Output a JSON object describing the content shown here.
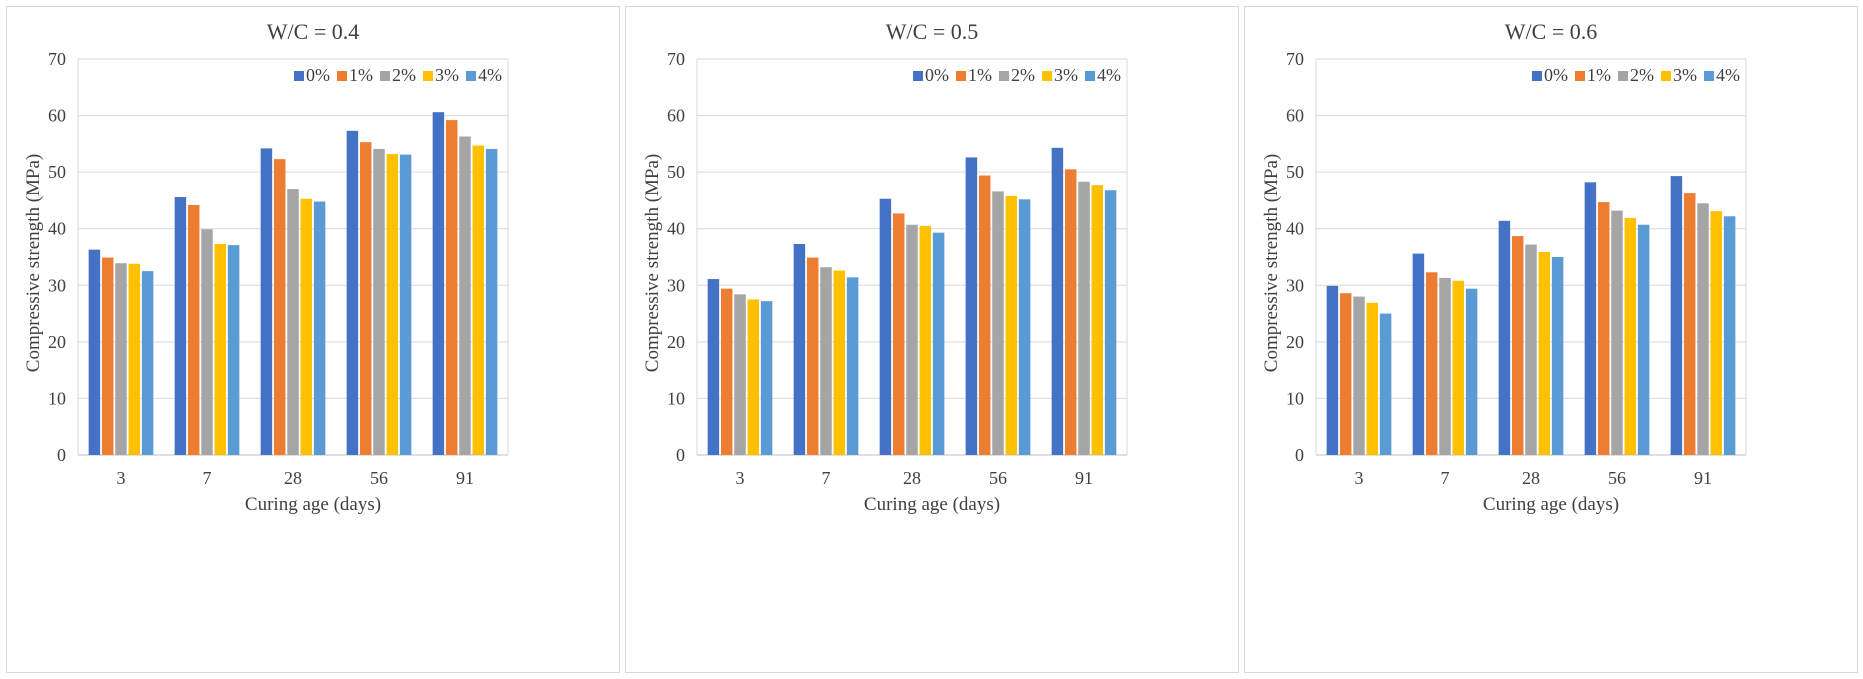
{
  "chart_data": [
    {
      "type": "bar",
      "title": "W/C = 0.4",
      "xlabel": "Curing age (days)",
      "ylabel": "Compressive strength (MPa)",
      "ylim": [
        0,
        70
      ],
      "yticks": [
        "0",
        "10",
        "20",
        "30",
        "40",
        "50",
        "60",
        "70"
      ],
      "categories": [
        "3",
        "7",
        "28",
        "56",
        "91"
      ],
      "legend_position": "top-right",
      "grid": true,
      "series": [
        {
          "name": "0%",
          "color": "#4472C4",
          "values": [
            36.3,
            45.6,
            54.2,
            57.3,
            60.6
          ]
        },
        {
          "name": "1%",
          "color": "#ED7D31",
          "values": [
            34.9,
            44.2,
            52.3,
            55.3,
            59.2
          ]
        },
        {
          "name": "2%",
          "color": "#A5A5A5",
          "values": [
            33.9,
            39.9,
            47.0,
            54.1,
            56.3
          ]
        },
        {
          "name": "3%",
          "color": "#FFC000",
          "values": [
            33.8,
            37.3,
            45.3,
            53.2,
            54.7
          ]
        },
        {
          "name": "4%",
          "color": "#5B9BD5",
          "values": [
            32.5,
            37.1,
            44.8,
            53.1,
            54.1
          ]
        }
      ]
    },
    {
      "type": "bar",
      "title": "W/C = 0.5",
      "xlabel": "Curing age (days)",
      "ylabel": "Compressive strength (MPa)",
      "ylim": [
        0,
        70
      ],
      "yticks": [
        "0",
        "10",
        "20",
        "30",
        "40",
        "50",
        "60",
        "70"
      ],
      "categories": [
        "3",
        "7",
        "28",
        "56",
        "91"
      ],
      "legend_position": "top-right",
      "grid": true,
      "series": [
        {
          "name": "0%",
          "color": "#4472C4",
          "values": [
            31.1,
            37.3,
            45.3,
            52.6,
            54.3
          ]
        },
        {
          "name": "1%",
          "color": "#ED7D31",
          "values": [
            29.4,
            34.9,
            42.7,
            49.4,
            50.5
          ]
        },
        {
          "name": "2%",
          "color": "#A5A5A5",
          "values": [
            28.4,
            33.2,
            40.7,
            46.6,
            48.3
          ]
        },
        {
          "name": "3%",
          "color": "#FFC000",
          "values": [
            27.5,
            32.6,
            40.5,
            45.8,
            47.7
          ]
        },
        {
          "name": "4%",
          "color": "#5B9BD5",
          "values": [
            27.2,
            31.4,
            39.3,
            45.2,
            46.8
          ]
        }
      ]
    },
    {
      "type": "bar",
      "title": "W/C = 0.6",
      "xlabel": "Curing age (days)",
      "ylabel": "Compressive strength (MPa)",
      "ylim": [
        0,
        70
      ],
      "yticks": [
        "0",
        "10",
        "20",
        "30",
        "40",
        "50",
        "60",
        "70"
      ],
      "categories": [
        "3",
        "7",
        "28",
        "56",
        "91"
      ],
      "legend_position": "top-right",
      "grid": true,
      "series": [
        {
          "name": "0%",
          "color": "#4472C4",
          "values": [
            29.9,
            35.6,
            41.4,
            48.2,
            49.3
          ]
        },
        {
          "name": "1%",
          "color": "#ED7D31",
          "values": [
            28.6,
            32.3,
            38.7,
            44.7,
            46.3
          ]
        },
        {
          "name": "2%",
          "color": "#A5A5A5",
          "values": [
            28.0,
            31.3,
            37.2,
            43.2,
            44.5
          ]
        },
        {
          "name": "3%",
          "color": "#FFC000",
          "values": [
            26.9,
            30.8,
            35.9,
            41.9,
            43.1
          ]
        },
        {
          "name": "4%",
          "color": "#5B9BD5",
          "values": [
            25.0,
            29.4,
            35.0,
            40.7,
            42.2
          ]
        }
      ]
    }
  ],
  "colors": {
    "grid": "#d9d9d9",
    "axis": "#bfbfbf",
    "text": "#404040"
  }
}
